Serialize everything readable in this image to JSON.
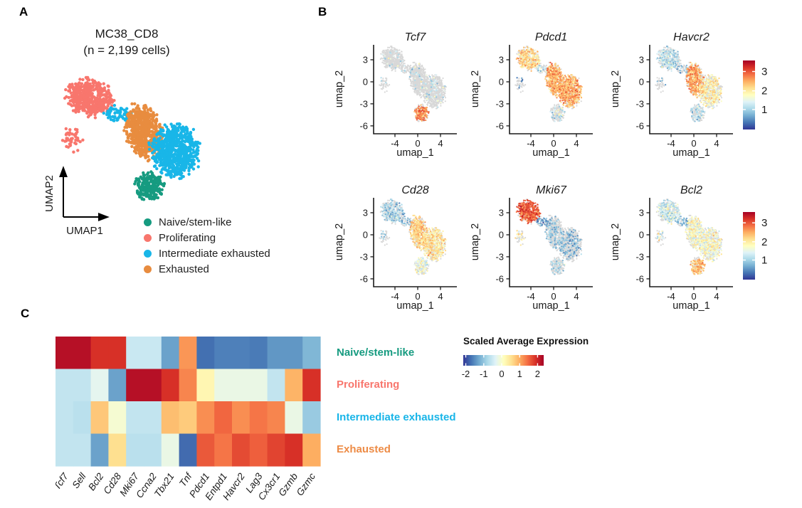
{
  "figure": {
    "panel_a": {
      "label": "A",
      "title_line1": "MC38_CD8",
      "title_line2": "(n = 2,199 cells)",
      "x_axis_label": "UMAP1",
      "y_axis_label": "UMAP2",
      "legend": [
        {
          "label": "Naive/stem-like",
          "color": "#169b80"
        },
        {
          "label": "Proliferating",
          "color": "#f8766d"
        },
        {
          "label": "Intermediate exhausted",
          "color": "#19b6e8"
        },
        {
          "label": "Exhausted",
          "color": "#e88c3f"
        }
      ]
    },
    "panel_b": {
      "label": "B",
      "x_axis_label": "umap_1",
      "y_axis_label": "umap_2",
      "x_ticks": [
        -4,
        0,
        4
      ],
      "y_ticks": [
        3,
        0,
        -3,
        -6
      ],
      "colorbar_ticks": [
        3,
        2,
        1
      ]
    },
    "panel_c": {
      "label": "C",
      "colorbar_title": "Scaled Average Expression",
      "colorbar_ticks": [
        -2,
        -1,
        0,
        1,
        2
      ]
    }
  },
  "chart_data": [
    {
      "type": "scatter",
      "id": "umap_clusters",
      "title": "MC38_CD8 (n = 2,199 cells)",
      "total_cells": 2199,
      "x_label": "UMAP1",
      "y_label": "UMAP2",
      "clusters": [
        {
          "id": "prolif",
          "name": "Proliferating",
          "color": "#f8766d",
          "n": 480,
          "cx": -4.4,
          "cy": 3.1,
          "rx": 2.3,
          "ry": 1.75,
          "rot": -15
        },
        {
          "id": "prolif_sat",
          "name": "Proliferating",
          "color": "#f8766d",
          "n": 45,
          "cx": -5.9,
          "cy": -0.4,
          "rx": 1.0,
          "ry": 1.2,
          "rot": 0
        },
        {
          "id": "strip",
          "name": "Intermediate exhausted",
          "color": "#19b6e8",
          "n": 80,
          "cx": -1.9,
          "cy": 1.7,
          "rx": 1.5,
          "ry": 0.75,
          "rot": -10
        },
        {
          "id": "exh",
          "name": "Exhausted",
          "color": "#e88c3f",
          "n": 620,
          "cx": 0.2,
          "cy": 0.3,
          "rx": 1.7,
          "ry": 2.7,
          "rot": 18
        },
        {
          "id": "inter",
          "name": "Intermediate exhausted",
          "color": "#19b6e8",
          "n": 750,
          "cx": 2.9,
          "cy": -1.3,
          "rx": 2.35,
          "ry": 2.5,
          "rot": 0
        },
        {
          "id": "naive",
          "name": "Naive/stem-like",
          "color": "#169b80",
          "n": 224,
          "cx": 0.7,
          "cy": -4.3,
          "rx": 1.45,
          "ry": 1.35,
          "rot": -25
        }
      ]
    },
    {
      "type": "scatter",
      "id": "feature_plots",
      "x_label": "umap_1",
      "y_label": "umap_2",
      "x_ticks": [
        -4,
        0,
        4
      ],
      "y_ticks": [
        3,
        0,
        -3,
        -6
      ],
      "colorbar_ticks": [
        3,
        2,
        1
      ],
      "expression_scale": [
        0.45,
        3.4
      ],
      "genes": [
        {
          "name": "Tcf7",
          "expr": {
            "prolif": [
              0.05,
              1.6
            ],
            "prolif_sat": [
              0.06,
              1.4
            ],
            "strip": [
              0.06,
              1.4
            ],
            "exh": [
              0.05,
              1.6
            ],
            "inter": [
              0.06,
              1.6
            ],
            "naive": [
              0.6,
              2.6
            ]
          }
        },
        {
          "name": "Pdcd1",
          "expr": {
            "prolif": [
              0.62,
              2.2
            ],
            "prolif_sat": [
              0.15,
              1.0
            ],
            "strip": [
              0.35,
              1.6
            ],
            "exh": [
              0.78,
              2.4
            ],
            "inter": [
              0.72,
              2.4
            ],
            "naive": [
              0.25,
              1.6
            ]
          }
        },
        {
          "name": "Havcr2",
          "expr": {
            "prolif": [
              0.45,
              1.5
            ],
            "prolif_sat": [
              0.12,
              1.1
            ],
            "strip": [
              0.3,
              1.3
            ],
            "exh": [
              0.65,
              2.4
            ],
            "inter": [
              0.5,
              2.0
            ],
            "naive": [
              0.28,
              1.5
            ]
          }
        },
        {
          "name": "Cd28",
          "expr": {
            "prolif": [
              0.45,
              1.4
            ],
            "prolif_sat": [
              0.2,
              1.3
            ],
            "strip": [
              0.35,
              1.3
            ],
            "exh": [
              0.62,
              2.2
            ],
            "inter": [
              0.55,
              2.1
            ],
            "naive": [
              0.45,
              1.8
            ]
          }
        },
        {
          "name": "Mki67",
          "expr": {
            "prolif": [
              0.88,
              2.8
            ],
            "prolif_sat": [
              0.45,
              2.0
            ],
            "strip": [
              0.5,
              1.0
            ],
            "exh": [
              0.22,
              1.3
            ],
            "inter": [
              0.22,
              1.2
            ],
            "naive": [
              0.18,
              1.4
            ]
          }
        },
        {
          "name": "Bcl2",
          "expr": {
            "prolif": [
              0.5,
              1.6
            ],
            "prolif_sat": [
              0.35,
              1.8
            ],
            "strip": [
              0.4,
              1.3
            ],
            "exh": [
              0.5,
              1.9
            ],
            "inter": [
              0.5,
              1.9
            ],
            "naive": [
              0.6,
              2.3
            ]
          }
        }
      ]
    },
    {
      "type": "heatmap",
      "id": "scaled_average_expression",
      "colorbar_title": "Scaled Average Expression",
      "colorbar_ticks": [
        -2,
        -1,
        0,
        1,
        2
      ],
      "value_range": [
        -2.2,
        2.2
      ],
      "columns": [
        "Tcf7",
        "Sell",
        "Bcl2",
        "Cd28",
        "Mki67",
        "Ccna2",
        "Tbx21",
        "Tnf",
        "Pdcd1",
        "Entpd1",
        "Havcr2",
        "Lag3",
        "Cx3cr1",
        "Gzmb",
        "Gzmc"
      ],
      "rows": [
        {
          "label": "Naive/stem-like",
          "color": "#169b80"
        },
        {
          "label": "Proliferating",
          "color": "#f8766d"
        },
        {
          "label": "Intermediate exhausted",
          "color": "#18b5e8"
        },
        {
          "label": "Exhausted",
          "color": "#ed8b45"
        }
      ],
      "values": [
        [
          2.0,
          2.0,
          1.6,
          1.6,
          -0.45,
          -0.45,
          -1.2,
          0.9,
          -1.65,
          -1.5,
          -1.5,
          -1.55,
          -1.3,
          -1.3,
          -1.0
        ],
        [
          -0.5,
          -0.5,
          -0.25,
          -1.2,
          2.0,
          2.0,
          1.6,
          1.0,
          0.1,
          -0.2,
          -0.2,
          -0.2,
          -0.5,
          0.7,
          1.6
        ],
        [
          -0.5,
          -0.55,
          0.55,
          -0.1,
          -0.5,
          -0.5,
          0.62,
          0.52,
          0.95,
          1.2,
          0.95,
          1.1,
          1.0,
          -0.2,
          -0.8
        ],
        [
          -0.5,
          -0.5,
          -1.2,
          0.35,
          -0.55,
          -0.55,
          -0.2,
          -1.7,
          1.3,
          1.1,
          1.4,
          1.25,
          1.45,
          1.6,
          0.75
        ]
      ]
    }
  ]
}
